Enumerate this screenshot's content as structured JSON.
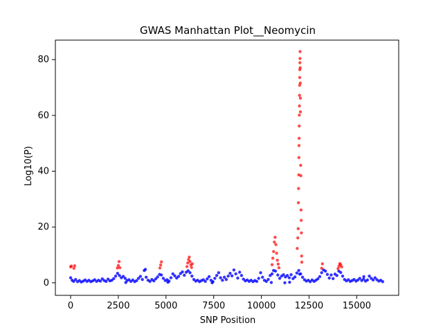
{
  "chart_data": {
    "type": "scatter",
    "title": "GWAS Manhattan Plot__Neomycin",
    "xlabel": "SNP Position",
    "ylabel": "Log10(P)",
    "xlim": [
      -800,
      17200
    ],
    "ylim": [
      -4.5,
      87
    ],
    "xticks": [
      0,
      2500,
      5000,
      7500,
      10000,
      12500,
      15000
    ],
    "xtick_labels": [
      "0",
      "2500",
      "5000",
      "7500",
      "10000",
      "12500",
      "15000"
    ],
    "yticks": [
      0,
      20,
      40,
      60,
      80
    ],
    "ytick_labels": [
      "0",
      "20",
      "40",
      "60",
      "80"
    ],
    "grid": false,
    "legend": "none",
    "colors": {
      "significant": "#ff0000",
      "non_significant": "#0000ff"
    },
    "significance_threshold": 5,
    "series": [
      {
        "color_key": "non_significant",
        "points": [
          [
            0,
            1.8
          ],
          [
            80,
            0.9
          ],
          [
            160,
            0.5
          ],
          [
            260,
            1.2
          ],
          [
            360,
            0.4
          ],
          [
            460,
            0.8
          ],
          [
            560,
            0.3
          ],
          [
            660,
            0.6
          ],
          [
            760,
            1.0
          ],
          [
            860,
            0.5
          ],
          [
            960,
            0.9
          ],
          [
            1060,
            0.4
          ],
          [
            1160,
            0.7
          ],
          [
            1260,
            1.1
          ],
          [
            1360,
            0.5
          ],
          [
            1460,
            0.9
          ],
          [
            1560,
            0.6
          ],
          [
            1660,
            1.4
          ],
          [
            1760,
            0.8
          ],
          [
            1860,
            0.5
          ],
          [
            1960,
            1.3
          ],
          [
            2060,
            0.7
          ],
          [
            2160,
            0.9
          ],
          [
            2260,
            1.5
          ],
          [
            2360,
            2.4
          ],
          [
            2460,
            3.4
          ],
          [
            2560,
            2.6
          ],
          [
            2660,
            1.8
          ],
          [
            2760,
            2.3
          ],
          [
            2860,
            1.6
          ],
          [
            2960,
            0.8
          ],
          [
            3060,
            1.1
          ],
          [
            3160,
            0.5
          ],
          [
            3260,
            1.0
          ],
          [
            3360,
            0.4
          ],
          [
            3460,
            0.8
          ],
          [
            3560,
            1.6
          ],
          [
            3660,
            2.3
          ],
          [
            3760,
            1.2
          ],
          [
            3860,
            4.4
          ],
          [
            3960,
            2.0
          ],
          [
            4060,
            0.9
          ],
          [
            4160,
            0.5
          ],
          [
            4260,
            1.2
          ],
          [
            4360,
            0.7
          ],
          [
            4460,
            1.4
          ],
          [
            4560,
            2.1
          ],
          [
            4660,
            3.0
          ],
          [
            4760,
            2.8
          ],
          [
            4860,
            1.6
          ],
          [
            4960,
            0.8
          ],
          [
            5060,
            1.1
          ],
          [
            5160,
            0.6
          ],
          [
            5260,
            1.8
          ],
          [
            5360,
            3.2
          ],
          [
            5460,
            2.5
          ],
          [
            5560,
            1.7
          ],
          [
            5660,
            2.3
          ],
          [
            5760,
            3.3
          ],
          [
            5860,
            3.9
          ],
          [
            5960,
            2.7
          ],
          [
            6060,
            3.8
          ],
          [
            6160,
            4.3
          ],
          [
            6260,
            3.6
          ],
          [
            6360,
            2.4
          ],
          [
            6460,
            1.2
          ],
          [
            6560,
            0.6
          ],
          [
            6660,
            0.9
          ],
          [
            6760,
            0.4
          ],
          [
            6860,
            0.8
          ],
          [
            6960,
            1.1
          ],
          [
            7060,
            0.5
          ],
          [
            7160,
            1.4
          ],
          [
            7260,
            2.2
          ],
          [
            7360,
            0.9
          ],
          [
            7460,
            0.4
          ],
          [
            7560,
            1.6
          ],
          [
            7660,
            2.6
          ],
          [
            7760,
            3.6
          ],
          [
            7860,
            1.8
          ],
          [
            7960,
            0.9
          ],
          [
            8060,
            2.0
          ],
          [
            8160,
            1.2
          ],
          [
            8260,
            2.4
          ],
          [
            8360,
            3.4
          ],
          [
            8460,
            2.5
          ],
          [
            8560,
            4.6
          ],
          [
            8660,
            3.2
          ],
          [
            8760,
            1.7
          ],
          [
            8860,
            3.8
          ],
          [
            8960,
            2.6
          ],
          [
            9060,
            1.3
          ],
          [
            9160,
            0.7
          ],
          [
            9260,
            1.0
          ],
          [
            9360,
            0.5
          ],
          [
            9460,
            0.9
          ],
          [
            9560,
            0.4
          ],
          [
            9660,
            0.8
          ],
          [
            9760,
            0.5
          ],
          [
            9860,
            1.6
          ],
          [
            9960,
            3.6
          ],
          [
            10060,
            2.0
          ],
          [
            10160,
            0.9
          ],
          [
            10260,
            0.5
          ],
          [
            10360,
            1.2
          ],
          [
            10460,
            2.6
          ],
          [
            10560,
            3.2
          ],
          [
            10640,
            4.4
          ],
          [
            10740,
            4.2
          ],
          [
            10860,
            2.8
          ],
          [
            10960,
            1.6
          ],
          [
            11060,
            2.4
          ],
          [
            11160,
            2.9
          ],
          [
            11260,
            2.1
          ],
          [
            11360,
            2.6
          ],
          [
            11460,
            1.8
          ],
          [
            11560,
            2.9
          ],
          [
            11660,
            1.5
          ],
          [
            11760,
            2.1
          ],
          [
            11860,
            3.5
          ],
          [
            11960,
            4.4
          ],
          [
            12060,
            3.2
          ],
          [
            12160,
            2.0
          ],
          [
            12260,
            1.1
          ],
          [
            12360,
            0.6
          ],
          [
            12460,
            0.9
          ],
          [
            12560,
            0.4
          ],
          [
            12660,
            1.0
          ],
          [
            12760,
            0.5
          ],
          [
            12860,
            0.9
          ],
          [
            12960,
            1.4
          ],
          [
            13060,
            2.2
          ],
          [
            13160,
            3.6
          ],
          [
            13260,
            4.6
          ],
          [
            13360,
            4.2
          ],
          [
            13460,
            3.0
          ],
          [
            13560,
            1.7
          ],
          [
            13660,
            2.8
          ],
          [
            13760,
            1.5
          ],
          [
            13860,
            3.1
          ],
          [
            13960,
            2.6
          ],
          [
            14060,
            4.2
          ],
          [
            14160,
            3.7
          ],
          [
            14260,
            2.4
          ],
          [
            14360,
            1.2
          ],
          [
            14460,
            0.7
          ],
          [
            14560,
            1.1
          ],
          [
            14660,
            0.5
          ],
          [
            14760,
            0.8
          ],
          [
            14860,
            1.2
          ],
          [
            14960,
            0.6
          ],
          [
            15060,
            1.0
          ],
          [
            15160,
            1.6
          ],
          [
            15260,
            0.8
          ],
          [
            15360,
            1.3
          ],
          [
            15460,
            0.6
          ],
          [
            15560,
            1.0
          ],
          [
            15660,
            2.4
          ],
          [
            15760,
            1.6
          ],
          [
            15860,
            1.0
          ],
          [
            15960,
            1.8
          ],
          [
            16060,
            1.1
          ],
          [
            16160,
            0.6
          ],
          [
            16260,
            0.9
          ],
          [
            16360,
            0.4
          ],
          [
            7420,
            0.0
          ],
          [
            2890,
            0.1
          ],
          [
            5100,
            0.2
          ],
          [
            3920,
            4.8
          ],
          [
            11230,
            0.0
          ],
          [
            11480,
            0.2
          ],
          [
            10520,
            0.1
          ],
          [
            12010,
            3.1
          ],
          [
            15370,
            2.2
          ]
        ]
      },
      {
        "color_key": "significant",
        "points": [
          [
            0,
            5.7
          ],
          [
            40,
            6.0
          ],
          [
            170,
            5.2
          ],
          [
            210,
            6.1
          ],
          [
            2450,
            5.3
          ],
          [
            2500,
            6.2
          ],
          [
            2540,
            7.6
          ],
          [
            2580,
            5.4
          ],
          [
            4680,
            5.3
          ],
          [
            4720,
            6.4
          ],
          [
            4760,
            7.5
          ],
          [
            6100,
            5.8
          ],
          [
            6140,
            7.1
          ],
          [
            6180,
            8.3
          ],
          [
            6220,
            9.2
          ],
          [
            6260,
            7.6
          ],
          [
            6300,
            6.4
          ],
          [
            6340,
            5.5
          ],
          [
            6380,
            6.8
          ],
          [
            10560,
            6.5
          ],
          [
            10600,
            8.8
          ],
          [
            10640,
            11.2
          ],
          [
            10680,
            14.6
          ],
          [
            10720,
            16.3
          ],
          [
            10760,
            13.7
          ],
          [
            10800,
            10.6
          ],
          [
            10840,
            8.1
          ],
          [
            10880,
            6.7
          ],
          [
            10920,
            5.4
          ],
          [
            11880,
            12.3
          ],
          [
            11910,
            16.1
          ],
          [
            11930,
            19.4
          ],
          [
            11940,
            28.7
          ],
          [
            11950,
            33.8
          ],
          [
            11960,
            38.7
          ],
          [
            11970,
            44.9
          ],
          [
            11975,
            49.2
          ],
          [
            11980,
            51.8
          ],
          [
            11985,
            56.2
          ],
          [
            11990,
            60.1
          ],
          [
            11995,
            63.4
          ],
          [
            12000,
            67.2
          ],
          [
            12005,
            70.8
          ],
          [
            12010,
            73.6
          ],
          [
            12015,
            76.4
          ],
          [
            12020,
            78.9
          ],
          [
            12025,
            80.4
          ],
          [
            12030,
            82.9
          ],
          [
            12035,
            77.1
          ],
          [
            12040,
            71.6
          ],
          [
            12045,
            66.2
          ],
          [
            12050,
            61.3
          ],
          [
            12060,
            42.1
          ],
          [
            12070,
            38.4
          ],
          [
            12080,
            26.1
          ],
          [
            12090,
            22.4
          ],
          [
            12100,
            17.9
          ],
          [
            12110,
            9.6
          ],
          [
            12120,
            7.4
          ],
          [
            13160,
            5.2
          ],
          [
            13200,
            6.8
          ],
          [
            14020,
            5.1
          ],
          [
            14070,
            6.0
          ],
          [
            14110,
            6.9
          ],
          [
            14160,
            6.5
          ],
          [
            14210,
            5.7
          ]
        ]
      }
    ]
  }
}
